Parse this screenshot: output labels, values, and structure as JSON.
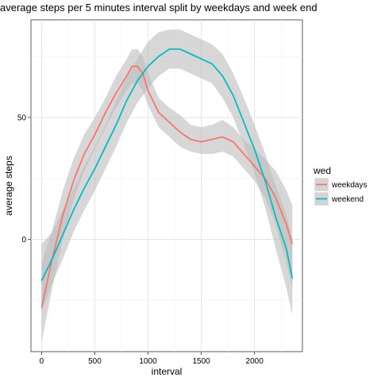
{
  "chart_data": {
    "type": "line",
    "title": "average steps per 5 minutes interval split by weekdays and week end",
    "xlabel": "interval",
    "ylabel": "average steps",
    "xlim": [
      -100,
      2450
    ],
    "ylim": [
      -46,
      90
    ],
    "x_ticks": [
      0,
      500,
      1000,
      1500,
      2000
    ],
    "x_tick_labels": [
      "0",
      "500",
      "1000",
      "1500",
      "2000"
    ],
    "y_ticks": [
      0,
      50
    ],
    "y_tick_labels": [
      "0",
      "50"
    ],
    "grid": true,
    "legend": {
      "title": "wed",
      "placement": "right"
    },
    "band_color": "#bdbdbd",
    "series": [
      {
        "name": "weekdays",
        "color": "#f8766d",
        "x": [
          0,
          100,
          200,
          300,
          400,
          500,
          600,
          700,
          800,
          850,
          900,
          950,
          1000,
          1100,
          1200,
          1300,
          1400,
          1500,
          1600,
          1700,
          1800,
          1900,
          2000,
          2100,
          2200,
          2300,
          2355
        ],
        "y": [
          -28,
          -8,
          10,
          24,
          35,
          43,
          52,
          60,
          67,
          71,
          71,
          68,
          61,
          52,
          48,
          44,
          41,
          40,
          41,
          42,
          40,
          35,
          30,
          25,
          17,
          6,
          -2
        ],
        "lower": [
          -42,
          -20,
          0,
          16,
          28,
          37,
          46,
          54,
          61,
          64,
          64,
          61,
          55,
          46,
          42,
          38,
          36,
          35,
          35,
          36,
          34,
          29,
          24,
          17,
          6,
          -10,
          -20
        ],
        "upper": [
          -10,
          4,
          20,
          33,
          43,
          50,
          58,
          67,
          74,
          78,
          78,
          75,
          68,
          58,
          54,
          51,
          47,
          46,
          47,
          49,
          46,
          41,
          37,
          33,
          28,
          20,
          14
        ]
      },
      {
        "name": "weekend",
        "color": "#00bfc4",
        "x": [
          0,
          100,
          200,
          300,
          400,
          500,
          600,
          700,
          800,
          900,
          1000,
          1100,
          1200,
          1300,
          1400,
          1500,
          1600,
          1700,
          1800,
          1900,
          2000,
          2100,
          2200,
          2300,
          2355
        ],
        "y": [
          -17,
          -8,
          2,
          12,
          21,
          29,
          38,
          47,
          57,
          65,
          71,
          75,
          78,
          78,
          76,
          74,
          72,
          67,
          59,
          48,
          37,
          24,
          9,
          -4,
          -16
        ],
        "lower": [
          -30,
          -18,
          -8,
          3,
          12,
          20,
          29,
          38,
          48,
          56,
          62,
          67,
          70,
          70,
          68,
          66,
          64,
          58,
          50,
          39,
          27,
          13,
          -4,
          -20,
          -31
        ],
        "upper": [
          -2,
          3,
          12,
          21,
          30,
          38,
          47,
          57,
          66,
          74,
          81,
          85,
          86,
          86,
          84,
          82,
          80,
          76,
          68,
          58,
          47,
          35,
          22,
          10,
          0
        ]
      }
    ]
  }
}
